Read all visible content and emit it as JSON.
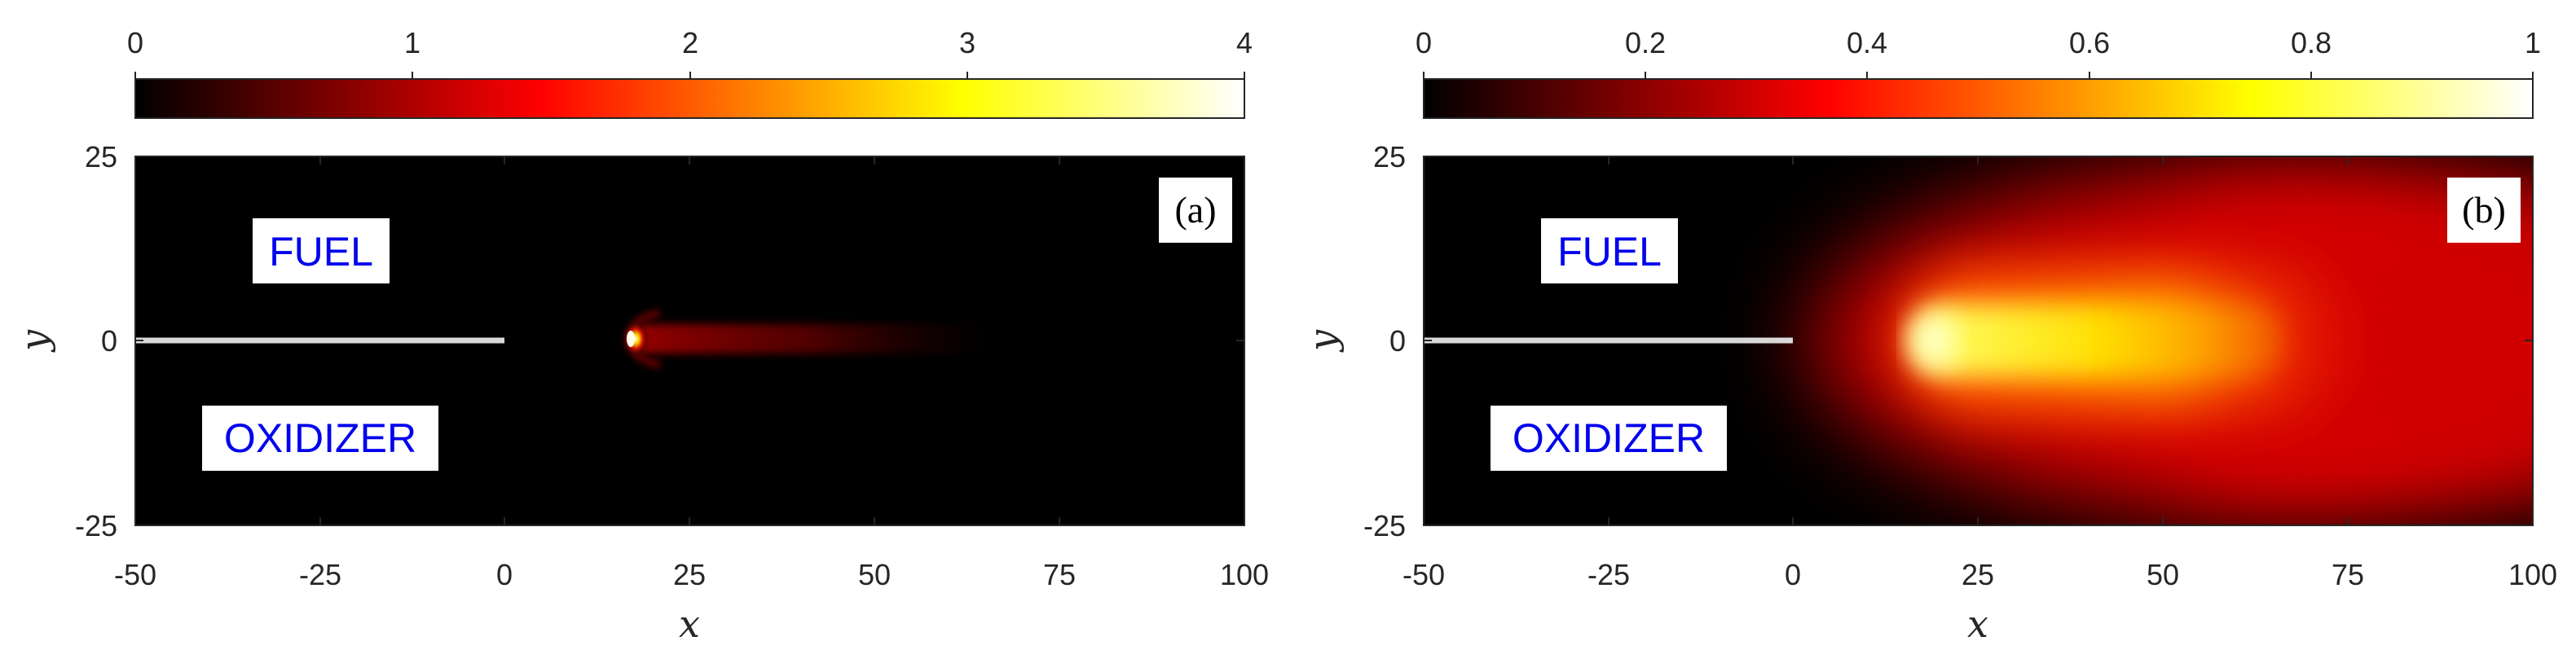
{
  "chart_data": [
    {
      "type": "heatmap",
      "panel_label": "(a)",
      "colorbar": {
        "min": 0,
        "max": 4,
        "ticks": [
          "0",
          "1",
          "2",
          "3",
          "4"
        ],
        "colormap": "hot"
      },
      "xlim": [
        -50,
        100
      ],
      "ylim": [
        -25,
        25
      ],
      "xticks": [
        "-50",
        "-25",
        "0",
        "25",
        "50",
        "75",
        "100"
      ],
      "yticks": [
        "25",
        "0",
        "-25"
      ],
      "xlabel": "x",
      "ylabel": "y",
      "regions": [
        {
          "label": "FUEL",
          "x": -25,
          "y": 12
        },
        {
          "label": "OXIDIZER",
          "x": -25,
          "y": -13
        }
      ],
      "splitter_plate": {
        "x_start": -50,
        "x_end": 0,
        "y": 0
      },
      "field": {
        "flame_tip_x": 17,
        "peak_value": 4,
        "trail_end_x": 65,
        "trail_half_width": 4,
        "background": 0
      }
    },
    {
      "type": "heatmap",
      "panel_label": "(b)",
      "colorbar": {
        "min": 0,
        "max": 1,
        "ticks": [
          "0",
          "0.2",
          "0.4",
          "0.6",
          "0.8",
          "1"
        ],
        "colormap": "hot"
      },
      "xlim": [
        -50,
        100
      ],
      "ylim": [
        -25,
        25
      ],
      "xticks": [
        "-50",
        "-25",
        "0",
        "25",
        "50",
        "75",
        "100"
      ],
      "yticks": [
        "25",
        "0",
        "-25"
      ],
      "xlabel": "x",
      "ylabel": "y",
      "regions": [
        {
          "label": "FUEL",
          "x": -25,
          "y": 12
        },
        {
          "label": "OXIDIZER",
          "x": -25,
          "y": -13
        }
      ],
      "splitter_plate": {
        "x_start": -50,
        "x_end": 0,
        "y": 0
      },
      "field": {
        "flame_tip_x": 17,
        "peak_value": 0.85,
        "core_end_x": 70,
        "background": 0
      }
    }
  ],
  "colors": {
    "plate": "#d9d9d9",
    "region_text": "#0000ee",
    "axis": "#262626"
  }
}
